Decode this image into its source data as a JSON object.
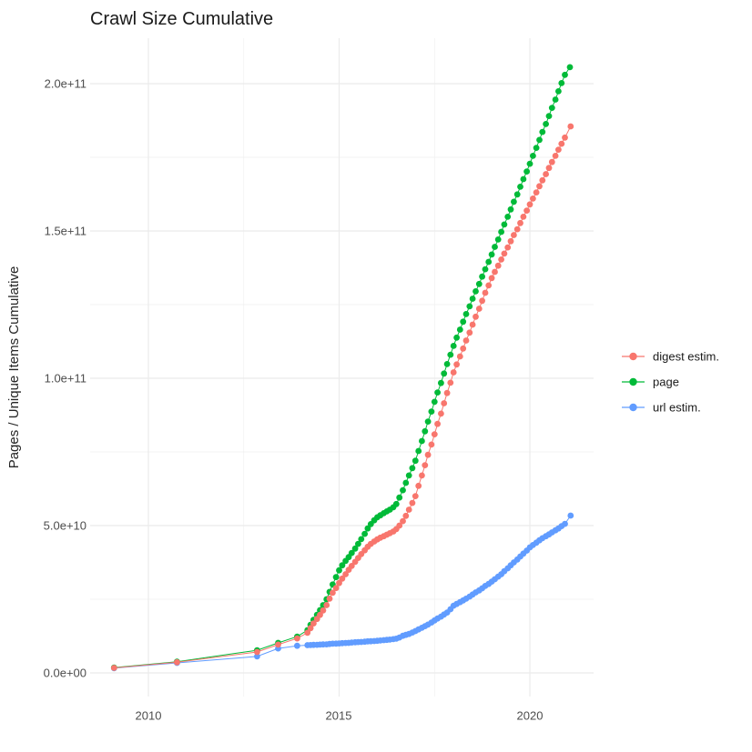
{
  "title": "Crawl Size Cumulative",
  "legend": [
    {
      "label": "digest estim.",
      "color": "#F8766D"
    },
    {
      "label": "page",
      "color": "#00BA38"
    },
    {
      "label": "url estim.",
      "color": "#619CFF"
    }
  ],
  "axes": {
    "y_title": "Pages / Unique Items Cumulative",
    "y_ticks": [
      {
        "label": "0.0e+00",
        "value": 0
      },
      {
        "label": "5.0e+10",
        "value": 50
      },
      {
        "label": "1.0e+11",
        "value": 100
      },
      {
        "label": "1.5e+11",
        "value": 150
      },
      {
        "label": "2.0e+11",
        "value": 200
      }
    ],
    "y_minor": [
      25,
      75,
      125,
      175
    ],
    "x_ticks": [
      {
        "label": "2010",
        "value": 2010
      },
      {
        "label": "2015",
        "value": 2015
      },
      {
        "label": "2020",
        "value": 2020
      }
    ],
    "x_minor": [
      2012.5,
      2017.5
    ]
  },
  "chart_data": {
    "type": "scatter",
    "title": "Crawl Size Cumulative",
    "xlabel": "",
    "ylabel": "Pages / Unique Items Cumulative",
    "value_unit": "billions (1e9)",
    "x_range_years": [
      2008.5,
      2021.7
    ],
    "y_range_billions": [
      -8,
      215
    ],
    "grid": true,
    "legend_position": "right",
    "series": [
      {
        "name": "digest estim.",
        "color": "#F8766D",
        "points": [
          [
            2009.1,
            1.7
          ],
          [
            2010.75,
            3.6
          ],
          [
            2012.85,
            7.1
          ],
          [
            2013.4,
            9.6
          ],
          [
            2013.9,
            11.7
          ],
          [
            2014.17,
            13.6
          ],
          [
            2014.25,
            15.2
          ],
          [
            2014.33,
            16.8
          ],
          [
            2014.42,
            18.3
          ],
          [
            2014.5,
            19.7
          ],
          [
            2014.58,
            21.2
          ],
          [
            2014.67,
            23.0
          ],
          [
            2014.75,
            25.2
          ],
          [
            2014.83,
            27.2
          ],
          [
            2014.92,
            28.8
          ],
          [
            2015.0,
            30.5
          ],
          [
            2015.08,
            32.0
          ],
          [
            2015.17,
            33.5
          ],
          [
            2015.25,
            35.0
          ],
          [
            2015.33,
            36.3
          ],
          [
            2015.42,
            37.7
          ],
          [
            2015.5,
            39.0
          ],
          [
            2015.58,
            40.3
          ],
          [
            2015.67,
            41.6
          ],
          [
            2015.75,
            42.8
          ],
          [
            2015.83,
            43.8
          ],
          [
            2015.92,
            44.6
          ],
          [
            2016.0,
            45.3
          ],
          [
            2016.08,
            45.9
          ],
          [
            2016.17,
            46.4
          ],
          [
            2016.25,
            46.9
          ],
          [
            2016.33,
            47.4
          ],
          [
            2016.42,
            48.0
          ],
          [
            2016.5,
            48.8
          ],
          [
            2016.58,
            50.0
          ],
          [
            2016.67,
            51.5
          ],
          [
            2016.75,
            53.3
          ],
          [
            2016.83,
            55.4
          ],
          [
            2016.92,
            57.7
          ],
          [
            2017.0,
            60.0
          ],
          [
            2017.08,
            63.5
          ],
          [
            2017.17,
            67.0
          ],
          [
            2017.25,
            70.5
          ],
          [
            2017.33,
            74.0
          ],
          [
            2017.42,
            77.5
          ],
          [
            2017.5,
            81.0
          ],
          [
            2017.58,
            84.5
          ],
          [
            2017.67,
            88.0
          ],
          [
            2017.75,
            91.5
          ],
          [
            2017.83,
            95.0
          ],
          [
            2017.92,
            98.5
          ],
          [
            2018.0,
            102.0
          ],
          [
            2018.08,
            104.7
          ],
          [
            2018.17,
            107.4
          ],
          [
            2018.25,
            110.1
          ],
          [
            2018.33,
            112.8
          ],
          [
            2018.42,
            115.5
          ],
          [
            2018.5,
            118.2
          ],
          [
            2018.58,
            120.9
          ],
          [
            2018.67,
            123.6
          ],
          [
            2018.75,
            126.3
          ],
          [
            2018.83,
            129.0
          ],
          [
            2018.92,
            131.5
          ],
          [
            2019.0,
            134.0
          ],
          [
            2019.08,
            136.1
          ],
          [
            2019.17,
            138.2
          ],
          [
            2019.25,
            140.3
          ],
          [
            2019.33,
            142.3
          ],
          [
            2019.42,
            144.4
          ],
          [
            2019.5,
            146.5
          ],
          [
            2019.58,
            148.6
          ],
          [
            2019.67,
            150.6
          ],
          [
            2019.75,
            152.7
          ],
          [
            2019.83,
            154.8
          ],
          [
            2019.92,
            156.9
          ],
          [
            2020.0,
            159.0
          ],
          [
            2020.08,
            161.0
          ],
          [
            2020.17,
            163.1
          ],
          [
            2020.25,
            165.2
          ],
          [
            2020.33,
            167.2
          ],
          [
            2020.42,
            169.3
          ],
          [
            2020.5,
            171.4
          ],
          [
            2020.58,
            173.4
          ],
          [
            2020.67,
            175.5
          ],
          [
            2020.75,
            177.6
          ],
          [
            2020.83,
            179.6
          ],
          [
            2020.92,
            181.7
          ],
          [
            2021.07,
            185.5
          ]
        ]
      },
      {
        "name": "page",
        "color": "#00BA38",
        "points": [
          [
            2009.1,
            1.8
          ],
          [
            2010.75,
            3.8
          ],
          [
            2012.85,
            7.7
          ],
          [
            2013.4,
            10.2
          ],
          [
            2013.9,
            12.3
          ],
          [
            2014.17,
            14.5
          ],
          [
            2014.25,
            16.3
          ],
          [
            2014.33,
            18.0
          ],
          [
            2014.42,
            19.7
          ],
          [
            2014.5,
            21.3
          ],
          [
            2014.58,
            23.0
          ],
          [
            2014.67,
            25.0
          ],
          [
            2014.75,
            27.5
          ],
          [
            2014.83,
            30.0
          ],
          [
            2014.92,
            32.5
          ],
          [
            2015.0,
            34.8
          ],
          [
            2015.08,
            36.5
          ],
          [
            2015.17,
            38.0
          ],
          [
            2015.25,
            39.3
          ],
          [
            2015.33,
            40.7
          ],
          [
            2015.42,
            42.2
          ],
          [
            2015.5,
            43.8
          ],
          [
            2015.58,
            45.4
          ],
          [
            2015.67,
            47.2
          ],
          [
            2015.75,
            49.0
          ],
          [
            2015.83,
            50.5
          ],
          [
            2015.92,
            51.8
          ],
          [
            2016.0,
            52.8
          ],
          [
            2016.08,
            53.5
          ],
          [
            2016.17,
            54.2
          ],
          [
            2016.25,
            54.8
          ],
          [
            2016.33,
            55.4
          ],
          [
            2016.42,
            56.2
          ],
          [
            2016.5,
            57.3
          ],
          [
            2016.58,
            59.5
          ],
          [
            2016.67,
            62.0
          ],
          [
            2016.75,
            64.5
          ],
          [
            2016.83,
            67.0
          ],
          [
            2016.92,
            69.5
          ],
          [
            2017.0,
            72.0
          ],
          [
            2017.08,
            75.3
          ],
          [
            2017.17,
            78.7
          ],
          [
            2017.25,
            82.0
          ],
          [
            2017.33,
            85.3
          ],
          [
            2017.42,
            88.7
          ],
          [
            2017.5,
            92.0
          ],
          [
            2017.58,
            95.2
          ],
          [
            2017.67,
            98.4
          ],
          [
            2017.75,
            101.6
          ],
          [
            2017.83,
            104.8
          ],
          [
            2017.92,
            108.0
          ],
          [
            2018.0,
            111.0
          ],
          [
            2018.08,
            113.8
          ],
          [
            2018.17,
            116.5
          ],
          [
            2018.25,
            119.2
          ],
          [
            2018.33,
            121.8
          ],
          [
            2018.42,
            124.4
          ],
          [
            2018.5,
            127.0
          ],
          [
            2018.58,
            129.5
          ],
          [
            2018.67,
            132.0
          ],
          [
            2018.75,
            134.5
          ],
          [
            2018.83,
            137.0
          ],
          [
            2018.92,
            139.5
          ],
          [
            2019.0,
            142.0
          ],
          [
            2019.08,
            144.6
          ],
          [
            2019.17,
            147.1
          ],
          [
            2019.25,
            149.7
          ],
          [
            2019.33,
            152.2
          ],
          [
            2019.42,
            154.8
          ],
          [
            2019.5,
            157.3
          ],
          [
            2019.58,
            159.9
          ],
          [
            2019.67,
            162.4
          ],
          [
            2019.75,
            165.0
          ],
          [
            2019.83,
            167.6
          ],
          [
            2019.92,
            170.2
          ],
          [
            2020.0,
            172.8
          ],
          [
            2020.08,
            175.5
          ],
          [
            2020.17,
            178.2
          ],
          [
            2020.25,
            180.9
          ],
          [
            2020.33,
            183.6
          ],
          [
            2020.42,
            186.3
          ],
          [
            2020.5,
            189.0
          ],
          [
            2020.58,
            191.8
          ],
          [
            2020.67,
            194.6
          ],
          [
            2020.75,
            197.4
          ],
          [
            2020.83,
            200.2
          ],
          [
            2020.92,
            203.0
          ],
          [
            2021.05,
            205.6
          ]
        ]
      },
      {
        "name": "url estim.",
        "color": "#619CFF",
        "points": [
          [
            2009.1,
            1.6
          ],
          [
            2010.75,
            3.4
          ],
          [
            2012.85,
            5.6
          ],
          [
            2013.4,
            8.3
          ],
          [
            2013.9,
            9.2
          ],
          [
            2014.17,
            9.4
          ],
          [
            2014.25,
            9.45
          ],
          [
            2014.33,
            9.5
          ],
          [
            2014.42,
            9.55
          ],
          [
            2014.5,
            9.6
          ],
          [
            2014.58,
            9.65
          ],
          [
            2014.67,
            9.7
          ],
          [
            2014.75,
            9.8
          ],
          [
            2014.83,
            9.9
          ],
          [
            2014.92,
            9.95
          ],
          [
            2015.0,
            10.0
          ],
          [
            2015.08,
            10.1
          ],
          [
            2015.17,
            10.15
          ],
          [
            2015.25,
            10.2
          ],
          [
            2015.33,
            10.3
          ],
          [
            2015.42,
            10.4
          ],
          [
            2015.5,
            10.45
          ],
          [
            2015.58,
            10.5
          ],
          [
            2015.67,
            10.6
          ],
          [
            2015.75,
            10.7
          ],
          [
            2015.83,
            10.75
          ],
          [
            2015.92,
            10.8
          ],
          [
            2016.0,
            10.9
          ],
          [
            2016.08,
            11.0
          ],
          [
            2016.17,
            11.1
          ],
          [
            2016.25,
            11.2
          ],
          [
            2016.33,
            11.3
          ],
          [
            2016.42,
            11.45
          ],
          [
            2016.5,
            11.6
          ],
          [
            2016.58,
            12.0
          ],
          [
            2016.67,
            12.6
          ],
          [
            2016.75,
            12.9
          ],
          [
            2016.83,
            13.2
          ],
          [
            2016.92,
            13.7
          ],
          [
            2017.0,
            14.2
          ],
          [
            2017.08,
            14.75
          ],
          [
            2017.17,
            15.3
          ],
          [
            2017.25,
            15.85
          ],
          [
            2017.33,
            16.4
          ],
          [
            2017.42,
            17.1
          ],
          [
            2017.5,
            17.8
          ],
          [
            2017.58,
            18.45
          ],
          [
            2017.67,
            19.1
          ],
          [
            2017.75,
            19.8
          ],
          [
            2017.83,
            20.5
          ],
          [
            2017.92,
            21.6
          ],
          [
            2018.0,
            22.8
          ],
          [
            2018.08,
            23.4
          ],
          [
            2018.17,
            24.0
          ],
          [
            2018.25,
            24.6
          ],
          [
            2018.33,
            25.2
          ],
          [
            2018.42,
            25.9
          ],
          [
            2018.5,
            26.6
          ],
          [
            2018.58,
            27.3
          ],
          [
            2018.67,
            28.0
          ],
          [
            2018.75,
            28.7
          ],
          [
            2018.83,
            29.5
          ],
          [
            2018.92,
            30.2
          ],
          [
            2019.0,
            31.0
          ],
          [
            2019.08,
            31.8
          ],
          [
            2019.17,
            32.7
          ],
          [
            2019.25,
            33.5
          ],
          [
            2019.33,
            34.5
          ],
          [
            2019.42,
            35.5
          ],
          [
            2019.5,
            36.5
          ],
          [
            2019.58,
            37.5
          ],
          [
            2019.67,
            38.5
          ],
          [
            2019.75,
            39.5
          ],
          [
            2019.83,
            40.5
          ],
          [
            2019.92,
            41.5
          ],
          [
            2020.0,
            42.6
          ],
          [
            2020.08,
            43.4
          ],
          [
            2020.17,
            44.2
          ],
          [
            2020.25,
            45.0
          ],
          [
            2020.33,
            45.7
          ],
          [
            2020.42,
            46.4
          ],
          [
            2020.5,
            47.0
          ],
          [
            2020.58,
            47.7
          ],
          [
            2020.67,
            48.4
          ],
          [
            2020.75,
            49.0
          ],
          [
            2020.83,
            49.8
          ],
          [
            2020.92,
            50.6
          ],
          [
            2021.07,
            53.4
          ]
        ]
      }
    ]
  }
}
